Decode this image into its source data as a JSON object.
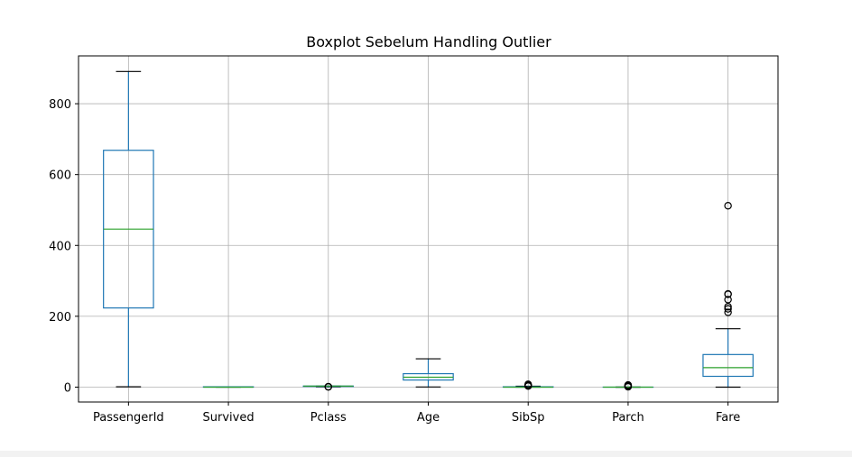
{
  "chart_data": {
    "type": "box",
    "title": "Boxplot Sebelum Handling Outlier",
    "xlabel": "",
    "ylabel": "",
    "ylim": [
      -42,
      935
    ],
    "yticks": [
      0,
      200,
      400,
      600,
      800
    ],
    "grid": true,
    "legend": "none",
    "colors": {
      "box": "#1f77b4",
      "median": "#2ca02c",
      "whisker": "#1f77b4",
      "cap": "#000000",
      "flier": "#000000",
      "grid": "#b0b0b0"
    },
    "categories": [
      "PassengerId",
      "Survived",
      "Pclass",
      "Age",
      "SibSp",
      "Parch",
      "Fare"
    ],
    "boxes": [
      {
        "name": "PassengerId",
        "whislo": 1,
        "q1": 223.5,
        "med": 446,
        "q3": 668.5,
        "whishi": 891,
        "fliers": []
      },
      {
        "name": "Survived",
        "whislo": 0,
        "q1": 0,
        "med": 0,
        "q3": 1,
        "whishi": 1,
        "fliers": []
      },
      {
        "name": "Pclass",
        "whislo": 1,
        "q1": 2,
        "med": 3,
        "q3": 3,
        "whishi": 3,
        "fliers": [
          1,
          1,
          1
        ]
      },
      {
        "name": "Age",
        "whislo": 0.42,
        "q1": 20.1,
        "med": 28,
        "q3": 38,
        "whishi": 80,
        "fliers": []
      },
      {
        "name": "SibSp",
        "whislo": 0,
        "q1": 0,
        "med": 0,
        "q3": 1,
        "whishi": 2.5,
        "fliers": [
          3,
          4,
          5,
          8
        ]
      },
      {
        "name": "Parch",
        "whislo": 0,
        "q1": 0,
        "med": 0,
        "q3": 0,
        "whishi": 0,
        "fliers": [
          1,
          2,
          3,
          4,
          5,
          6
        ]
      },
      {
        "name": "Fare",
        "whislo": 0,
        "q1": 30.5,
        "med": 55,
        "q3": 92,
        "whishi": 164.9,
        "fliers": [
          211,
          221,
          227,
          247,
          262,
          263,
          512
        ]
      }
    ]
  }
}
